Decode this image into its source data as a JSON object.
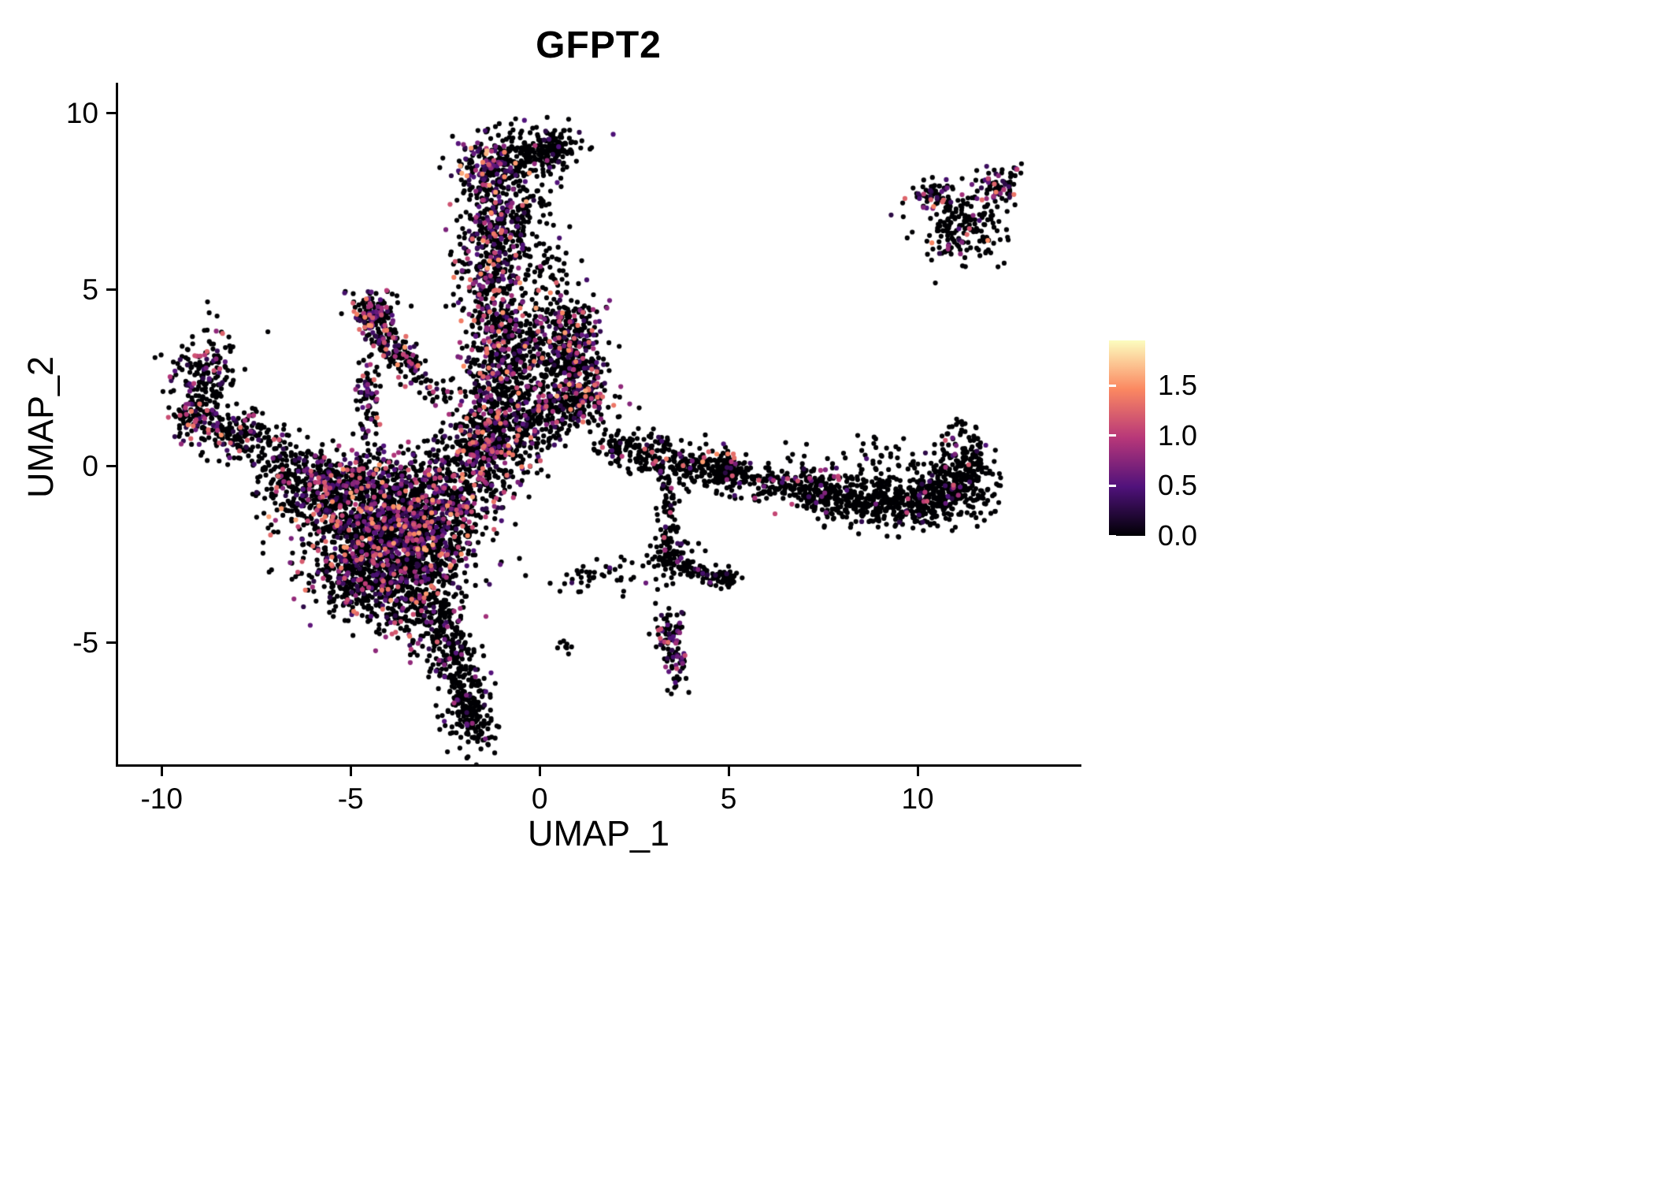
{
  "title": "GFPT2",
  "axes": {
    "x_label": "UMAP_1",
    "y_label": "UMAP_2",
    "x_tick_labels": [
      "-10",
      "-5",
      "0",
      "5",
      "10"
    ],
    "x_tick_values": [
      -10,
      -5,
      0,
      5,
      10
    ],
    "y_tick_labels": [
      "-5",
      "0",
      "5",
      "10"
    ],
    "y_tick_values": [
      -5,
      0,
      5,
      10
    ],
    "x_range": [
      -11.15,
      14.27
    ],
    "y_range": [
      -8.46,
      10.85
    ]
  },
  "legend": {
    "tick_labels": [
      "0.0",
      "0.5",
      "1.0",
      "1.5"
    ],
    "tick_values": [
      0.0,
      0.5,
      1.0,
      1.5
    ],
    "vmin": 0.0,
    "vmax": 1.95,
    "colormap": "magma",
    "colormap_stops": [
      "#000004",
      "#50127b",
      "#b73779",
      "#fb8861",
      "#fcfdbf"
    ]
  },
  "colors": {
    "background": "#ffffff",
    "axis": "#000000",
    "zero_expression_point": "#000004"
  },
  "chart_data": {
    "type": "scatter",
    "title": "GFPT2",
    "xlabel": "UMAP_1",
    "ylabel": "UMAP_2",
    "xlim": [
      -11.15,
      14.27
    ],
    "ylim": [
      -8.46,
      10.85
    ],
    "grid": false,
    "legend_position": "right",
    "point_radius_px": 3.1,
    "seed": 20240613,
    "value_is": "GFPT2 expression, 0 to ~1.9, magma colour scale, most cells 0 (black)",
    "clusters": [
      {
        "name": "main-blob-core",
        "cx": -4.4,
        "cy": -1.3,
        "sx": 1.15,
        "sy": 0.75,
        "rot": -15,
        "n": 850,
        "f": 0.28,
        "vmax": 1.6
      },
      {
        "name": "main-blob-mid",
        "cx": -3.7,
        "cy": -2.4,
        "sx": 0.95,
        "sy": 0.85,
        "rot": 0,
        "n": 750,
        "f": 0.28,
        "vmax": 1.6
      },
      {
        "name": "main-blob-lower-left",
        "cx": -4.9,
        "cy": -3.1,
        "sx": 0.65,
        "sy": 0.6,
        "rot": 20,
        "n": 320,
        "f": 0.22,
        "vmax": 1.4
      },
      {
        "name": "main-blob-lower",
        "cx": -3.1,
        "cy": -3.9,
        "sx": 0.55,
        "sy": 0.75,
        "rot": 10,
        "n": 260,
        "f": 0.22,
        "vmax": 1.4
      },
      {
        "name": "main-blob-left-edge",
        "cx": -5.9,
        "cy": -0.6,
        "sx": 0.75,
        "sy": 0.45,
        "rot": -10,
        "n": 200,
        "f": 0.18,
        "vmax": 1.3
      },
      {
        "name": "main-blob-right",
        "cx": -2.7,
        "cy": -1.2,
        "sx": 0.75,
        "sy": 0.8,
        "rot": 0,
        "n": 330,
        "f": 0.28,
        "vmax": 1.6
      },
      {
        "name": "main-blob-top",
        "cx": -4.2,
        "cy": -0.3,
        "sx": 1.3,
        "sy": 0.3,
        "rot": -5,
        "n": 200,
        "f": 0.25,
        "vmax": 1.5
      },
      {
        "name": "tail-upper",
        "cx": -2.35,
        "cy": -5.3,
        "sx": 0.3,
        "sy": 0.55,
        "rot": 15,
        "n": 140,
        "f": 0.08,
        "vmax": 1.0
      },
      {
        "name": "tail-lower",
        "cx": -1.85,
        "cy": -6.9,
        "sx": 0.33,
        "sy": 0.68,
        "rot": 5,
        "n": 230,
        "f": 0.06,
        "vmax": 1.0
      },
      {
        "name": "column-base",
        "cx": -1.4,
        "cy": 0.7,
        "sx": 0.6,
        "sy": 0.6,
        "rot": 0,
        "n": 260,
        "f": 0.3,
        "vmax": 1.5
      },
      {
        "name": "column-low",
        "cx": -1.2,
        "cy": 2.1,
        "sx": 0.5,
        "sy": 0.65,
        "rot": 0,
        "n": 240,
        "f": 0.3,
        "vmax": 1.5
      },
      {
        "name": "column-mid",
        "cx": -1.0,
        "cy": 3.6,
        "sx": 0.5,
        "sy": 0.75,
        "rot": 0,
        "n": 250,
        "f": 0.3,
        "vmax": 1.6
      },
      {
        "name": "column-upper",
        "cx": -1.3,
        "cy": 5.5,
        "sx": 0.45,
        "sy": 0.85,
        "rot": 0,
        "n": 270,
        "f": 0.35,
        "vmax": 1.7
      },
      {
        "name": "column-high",
        "cx": -1.1,
        "cy": 6.9,
        "sx": 0.4,
        "sy": 0.55,
        "rot": 0,
        "n": 170,
        "f": 0.3,
        "vmax": 1.5
      },
      {
        "name": "column-top-dense",
        "cx": -1.25,
        "cy": 8.3,
        "sx": 0.45,
        "sy": 0.5,
        "rot": 0,
        "n": 230,
        "f": 0.38,
        "vmax": 1.7
      },
      {
        "name": "top-blob",
        "cx": -0.2,
        "cy": 8.9,
        "sx": 0.55,
        "sy": 0.35,
        "rot": 0,
        "n": 150,
        "f": 0.08,
        "vmax": 1.2
      },
      {
        "name": "top-blob-tip",
        "cx": 0.35,
        "cy": 9.05,
        "sx": 0.3,
        "sy": 0.25,
        "rot": 0,
        "n": 90,
        "f": 0.05,
        "vmax": 1.0
      },
      {
        "name": "column-top-sparse",
        "cx": -0.35,
        "cy": 7.5,
        "sx": 0.4,
        "sy": 0.55,
        "rot": 0,
        "n": 70,
        "f": 0.15,
        "vmax": 1.3
      },
      {
        "name": "branch-blob",
        "cx": 0.7,
        "cy": 3.9,
        "sx": 0.5,
        "sy": 0.5,
        "rot": 0,
        "n": 200,
        "f": 0.3,
        "vmax": 1.6
      },
      {
        "name": "branch-mid",
        "cx": 0.95,
        "cy": 2.9,
        "sx": 0.4,
        "sy": 0.45,
        "rot": 0,
        "n": 140,
        "f": 0.3,
        "vmax": 1.5
      },
      {
        "name": "branch-low",
        "cx": 1.0,
        "cy": 1.9,
        "sx": 0.5,
        "sy": 0.4,
        "rot": 0,
        "n": 170,
        "f": 0.35,
        "vmax": 1.6
      },
      {
        "name": "branch-left-sparse",
        "cx": 0.2,
        "cy": 1.6,
        "sx": 0.5,
        "sy": 0.4,
        "rot": 0,
        "n": 110,
        "f": 0.25,
        "vmax": 1.4
      },
      {
        "name": "branch-top-sparse",
        "cx": 0.1,
        "cy": 5.5,
        "sx": 0.35,
        "sy": 0.5,
        "rot": 0,
        "n": 60,
        "f": 0.15,
        "vmax": 1.3
      },
      {
        "name": "column-branch-gap",
        "cx": 0.0,
        "cy": 2.9,
        "sx": 0.6,
        "sy": 0.8,
        "rot": 0,
        "n": 130,
        "f": 0.2,
        "vmax": 1.4
      },
      {
        "name": "diagonal-streak",
        "cx": -3.8,
        "cy": 3.3,
        "sx": 1.0,
        "sy": 0.22,
        "rot": -52,
        "n": 210,
        "f": 0.3,
        "vmax": 1.6
      },
      {
        "name": "diagonal-knob",
        "cx": -4.35,
        "cy": 4.3,
        "sx": 0.28,
        "sy": 0.3,
        "rot": 0,
        "n": 110,
        "f": 0.4,
        "vmax": 1.8
      },
      {
        "name": "diagonal-strand",
        "cx": -4.55,
        "cy": 1.9,
        "sx": 0.15,
        "sy": 0.75,
        "rot": 0,
        "n": 90,
        "f": 0.3,
        "vmax": 1.4
      },
      {
        "name": "left-arm-top",
        "cx": -8.9,
        "cy": 2.7,
        "sx": 0.45,
        "sy": 0.55,
        "rot": -30,
        "n": 150,
        "f": 0.2,
        "vmax": 1.4
      },
      {
        "name": "left-arm-bend",
        "cx": -9.0,
        "cy": 1.5,
        "sx": 0.4,
        "sy": 0.4,
        "rot": 0,
        "n": 130,
        "f": 0.3,
        "vmax": 1.5
      },
      {
        "name": "left-arm-inner",
        "cx": -8.0,
        "cy": 0.95,
        "sx": 0.55,
        "sy": 0.35,
        "rot": -10,
        "n": 130,
        "f": 0.2,
        "vmax": 1.3
      },
      {
        "name": "left-arm-trail",
        "cx": -6.9,
        "cy": 0.3,
        "sx": 0.65,
        "sy": 0.35,
        "rot": -15,
        "n": 90,
        "f": 0.12,
        "vmax": 1.2
      },
      {
        "name": "blob-column-gap",
        "cx": -1.6,
        "cy": -0.1,
        "sx": 0.75,
        "sy": 0.55,
        "rot": 0,
        "n": 170,
        "f": 0.22,
        "vmax": 1.4
      },
      {
        "name": "gap-upper",
        "cx": -0.5,
        "cy": 0.9,
        "sx": 0.55,
        "sy": 0.5,
        "rot": 0,
        "n": 130,
        "f": 0.22,
        "vmax": 1.4
      },
      {
        "name": "band-start",
        "cx": 2.2,
        "cy": 0.6,
        "sx": 0.5,
        "sy": 0.3,
        "rot": -10,
        "n": 90,
        "f": 0.12,
        "vmax": 1.3
      },
      {
        "name": "band-early",
        "cx": 3.3,
        "cy": 0.2,
        "sx": 0.55,
        "sy": 0.3,
        "rot": -10,
        "n": 120,
        "f": 0.1,
        "vmax": 1.3
      },
      {
        "name": "band-knot-approach",
        "cx": 4.4,
        "cy": -0.05,
        "sx": 0.55,
        "sy": 0.28,
        "rot": -5,
        "n": 130,
        "f": 0.12,
        "vmax": 1.7
      },
      {
        "name": "band-knot",
        "cx": 5.0,
        "cy": -0.15,
        "sx": 0.25,
        "sy": 0.25,
        "rot": 0,
        "n": 90,
        "f": 0.1,
        "vmax": 1.3
      },
      {
        "name": "band-mid",
        "cx": 6.4,
        "cy": -0.55,
        "sx": 0.9,
        "sy": 0.28,
        "rot": -6,
        "n": 190,
        "f": 0.05,
        "vmax": 1.2
      },
      {
        "name": "band-late",
        "cx": 8.2,
        "cy": -0.9,
        "sx": 0.85,
        "sy": 0.33,
        "rot": -4,
        "n": 260,
        "f": 0.05,
        "vmax": 1.2
      },
      {
        "name": "band-dense",
        "cx": 9.8,
        "cy": -0.95,
        "sx": 0.8,
        "sy": 0.4,
        "rot": 3,
        "n": 300,
        "f": 0.05,
        "vmax": 1.2
      },
      {
        "name": "band-end",
        "cx": 11.0,
        "cy": -0.55,
        "sx": 0.5,
        "sy": 0.5,
        "rot": 0,
        "n": 260,
        "f": 0.06,
        "vmax": 1.2
      },
      {
        "name": "band-end-wisp",
        "cx": 11.3,
        "cy": 0.5,
        "sx": 0.3,
        "sy": 0.5,
        "rot": 10,
        "n": 80,
        "f": 0.08,
        "vmax": 1.2
      },
      {
        "name": "band-above-sparse",
        "cx": 8.6,
        "cy": 0.2,
        "sx": 1.3,
        "sy": 0.3,
        "rot": 0,
        "n": 50,
        "f": 0.06,
        "vmax": 1.2
      },
      {
        "name": "drip-chain",
        "cx": 3.4,
        "cy": -1.5,
        "sx": 0.14,
        "sy": 0.55,
        "rot": 0,
        "n": 70,
        "f": 0.1,
        "vmax": 1.2
      },
      {
        "name": "drip-knot",
        "cx": 3.55,
        "cy": -2.55,
        "sx": 0.3,
        "sy": 0.3,
        "rot": 0,
        "n": 70,
        "f": 0.12,
        "vmax": 1.3
      },
      {
        "name": "drip-arm",
        "cx": 4.3,
        "cy": -3.0,
        "sx": 0.45,
        "sy": 0.15,
        "rot": -18,
        "n": 60,
        "f": 0.08,
        "vmax": 1.2
      },
      {
        "name": "drip-arm-tip",
        "cx": 5.0,
        "cy": -3.2,
        "sx": 0.16,
        "sy": 0.14,
        "rot": 0,
        "n": 40,
        "f": 0.08,
        "vmax": 1.2
      },
      {
        "name": "small-lower-cluster",
        "cx": 3.55,
        "cy": -5.1,
        "sx": 0.18,
        "sy": 0.55,
        "rot": 5,
        "n": 115,
        "f": 0.3,
        "vmax": 1.3
      },
      {
        "name": "sparse-low-mid",
        "cx": 1.6,
        "cy": -3.1,
        "sx": 0.65,
        "sy": 0.22,
        "rot": 5,
        "n": 45,
        "f": 0.1,
        "vmax": 1.2
      },
      {
        "name": "dot-pair",
        "cx": 0.75,
        "cy": -5.1,
        "sx": 0.15,
        "sy": 0.1,
        "rot": 0,
        "n": 8,
        "f": 0.0,
        "vmax": 1.0
      },
      {
        "name": "island-core",
        "cx": 11.2,
        "cy": 6.9,
        "sx": 0.55,
        "sy": 0.55,
        "rot": 0,
        "n": 210,
        "f": 0.15,
        "vmax": 1.6
      },
      {
        "name": "island-arm",
        "cx": 12.15,
        "cy": 7.9,
        "sx": 0.3,
        "sy": 0.28,
        "rot": 40,
        "n": 60,
        "f": 0.25,
        "vmax": 1.5
      },
      {
        "name": "island-left-wisp",
        "cx": 10.35,
        "cy": 7.75,
        "sx": 0.3,
        "sy": 0.18,
        "rot": 0,
        "n": 40,
        "f": 0.45,
        "vmax": 1.8
      },
      {
        "name": "island-tip",
        "cx": 12.6,
        "cy": 8.4,
        "sx": 0.08,
        "sy": 0.08,
        "rot": 0,
        "n": 6,
        "f": 0.5,
        "vmax": 1.2
      }
    ]
  }
}
